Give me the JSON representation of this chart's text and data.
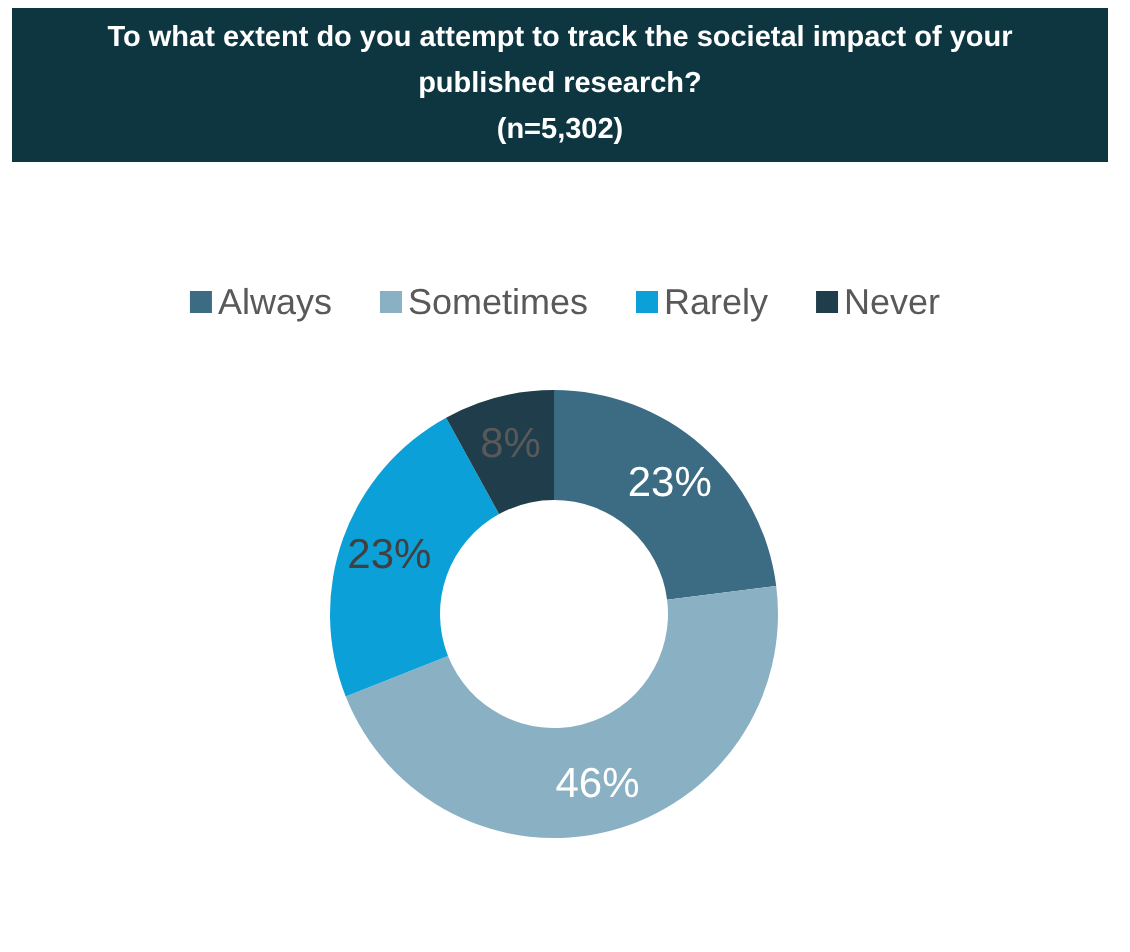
{
  "chart_data": {
    "type": "donut",
    "title": "To what extent do you attempt to track the societal impact of your published research?",
    "subtitle": "(n=5,302)",
    "categories": [
      "Always",
      "Sometimes",
      "Rarely",
      "Never"
    ],
    "values": [
      23,
      46,
      23,
      8
    ],
    "colors": [
      "#3b6c84",
      "#8ab0c4",
      "#0ba1d8",
      "#1f3d4b"
    ],
    "value_labels": [
      "23%",
      "46%",
      "23%",
      "8%"
    ],
    "legend": "top"
  }
}
